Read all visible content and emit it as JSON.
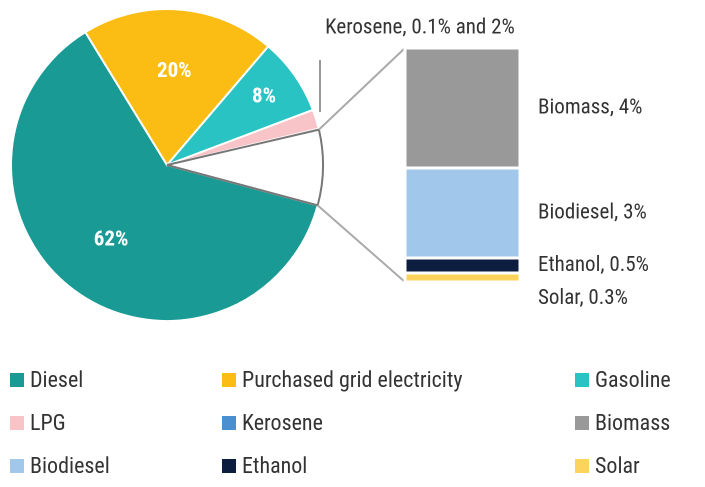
{
  "chart_data": {
    "type": "pie",
    "categories": [
      "Diesel",
      "Purchased grid electricity",
      "Gasoline",
      "LPG",
      "Kerosene",
      "Biomass",
      "Biodiesel",
      "Ethanol",
      "Solar"
    ],
    "values": [
      62,
      20,
      8,
      2,
      0.1,
      4,
      3,
      0.5,
      0.3
    ],
    "value_labels": [
      "62%",
      "20%",
      "8%",
      null,
      null,
      "Biomass, 4%",
      "Biodiesel, 3%",
      "Ethanol, 0.5%",
      "Solar, 0.3%"
    ],
    "colors": [
      "#1a9a94",
      "#fbbc14",
      "#2ac3c3",
      "#f9c4c8",
      "#4a90d0",
      "#999999",
      "#a1c8ea",
      "#0c1d3f",
      "#fcd45c"
    ],
    "second_plot_items": 4,
    "annotation": "Kerosene, 0.1% and 2%",
    "legend": "bottom"
  }
}
